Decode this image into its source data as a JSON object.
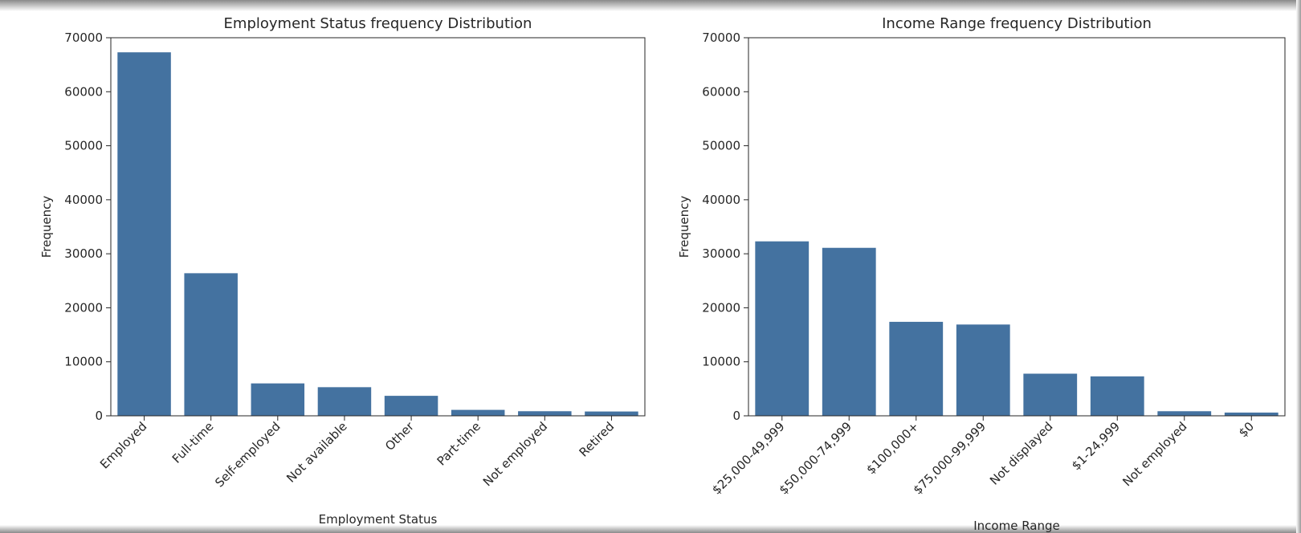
{
  "chart_data": [
    {
      "type": "bar",
      "title": "Employment Status frequency Distribution",
      "xlabel": "Employment Status",
      "ylabel": "Frequency",
      "ylim": [
        0,
        70000
      ],
      "yticks": [
        0,
        10000,
        20000,
        30000,
        40000,
        50000,
        60000,
        70000
      ],
      "grid": false,
      "bar_color": "#4472a0",
      "categories": [
        "Employed",
        "Full-time",
        "Self-employed",
        "Not available",
        "Other",
        "Part-time",
        "Not employed",
        "Retired"
      ],
      "values": [
        67300,
        26400,
        6000,
        5300,
        3700,
        1100,
        850,
        800
      ]
    },
    {
      "type": "bar",
      "title": "Income Range frequency Distribution",
      "xlabel": "Income Range",
      "ylabel": "Frequency",
      "ylim": [
        0,
        70000
      ],
      "yticks": [
        0,
        10000,
        20000,
        30000,
        40000,
        50000,
        60000,
        70000
      ],
      "grid": false,
      "bar_color": "#4472a0",
      "categories": [
        "$25,000-49,999",
        "$50,000-74,999",
        "$100,000+",
        "$75,000-99,999",
        "Not displayed",
        "$1-24,999",
        "Not employed",
        "$0"
      ],
      "values": [
        32300,
        31100,
        17400,
        16900,
        7800,
        7300,
        850,
        600
      ]
    }
  ]
}
